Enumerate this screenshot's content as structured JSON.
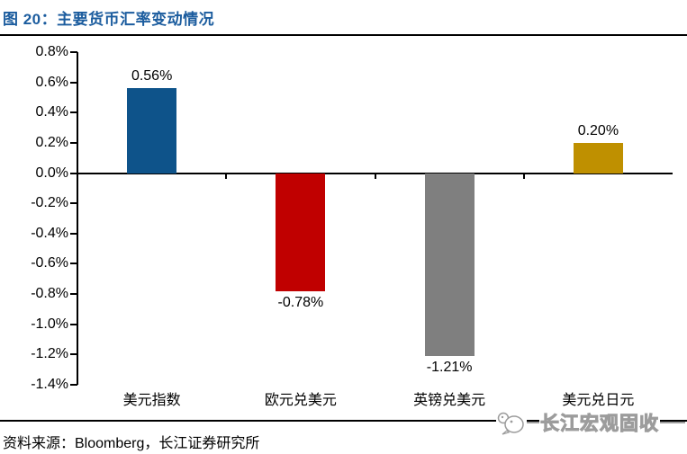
{
  "header": {
    "title": "图 20：主要货币汇率变动情况"
  },
  "chart_data": {
    "type": "bar",
    "title": "图 20：主要货币汇率变动情况",
    "categories": [
      "美元指数",
      "欧元兑美元",
      "英镑兑美元",
      "美元兑日元"
    ],
    "values": [
      0.56,
      -0.78,
      -1.21,
      0.2
    ],
    "value_labels": [
      "0.56%",
      "-0.78%",
      "-1.21%",
      "0.20%"
    ],
    "bar_colors": [
      "#0E538A",
      "#C00000",
      "#7F7F7F",
      "#BF9000"
    ],
    "ylim": [
      -1.4,
      0.8
    ],
    "ytick_step": 0.2,
    "yticks": [
      "0.8%",
      "0.6%",
      "0.4%",
      "0.2%",
      "0.0%",
      "-0.2%",
      "-0.4%",
      "-0.6%",
      "-0.8%",
      "-1.0%",
      "-1.2%",
      "-1.4%"
    ],
    "xlabel": "",
    "ylabel": "",
    "grid": false,
    "legend": null
  },
  "footer": {
    "source": "资料来源：Bloomberg，长江证券研究所"
  },
  "watermark": {
    "label": "长江宏观固收"
  }
}
